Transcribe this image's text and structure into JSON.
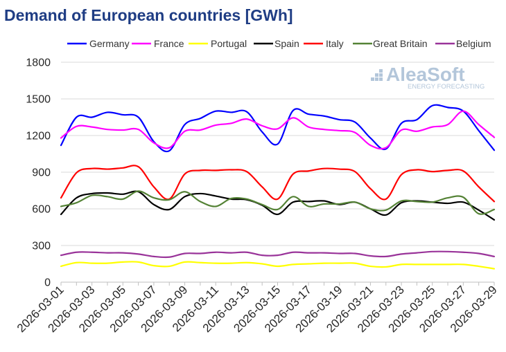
{
  "chart_data": {
    "type": "line",
    "title": "Demand of European countries [GWh]",
    "xlabel": "",
    "ylabel": "",
    "ylim": [
      0,
      1800
    ],
    "yticks": [
      0,
      300,
      600,
      900,
      1200,
      1500,
      1800
    ],
    "grid": true,
    "legend": "top",
    "x": [
      "2026-03-01",
      "2026-03-02",
      "2026-03-03",
      "2026-03-04",
      "2026-03-05",
      "2026-03-06",
      "2026-03-07",
      "2026-03-08",
      "2026-03-09",
      "2026-03-10",
      "2026-03-11",
      "2026-03-12",
      "2026-03-13",
      "2026-03-14",
      "2026-03-15",
      "2026-03-16",
      "2026-03-17",
      "2026-03-18",
      "2026-03-19",
      "2026-03-20",
      "2026-03-21",
      "2026-03-22",
      "2026-03-23",
      "2026-03-24",
      "2026-03-25",
      "2026-03-26",
      "2026-03-27",
      "2026-03-28",
      "2026-03-29"
    ],
    "xticks": [
      "2026-03-01",
      "2026-03-03",
      "2026-03-05",
      "2026-03-07",
      "2026-03-09",
      "2026-03-11",
      "2026-03-13",
      "2026-03-15",
      "2026-03-17",
      "2026-03-19",
      "2026-03-21",
      "2026-03-23",
      "2026-03-25",
      "2026-03-27",
      "2026-03-29"
    ],
    "series": [
      {
        "name": "Germany",
        "color": "#0000ff",
        "values": [
          1120,
          1350,
          1350,
          1390,
          1370,
          1350,
          1150,
          1075,
          1290,
          1340,
          1400,
          1390,
          1395,
          1230,
          1130,
          1405,
          1375,
          1360,
          1330,
          1310,
          1180,
          1090,
          1300,
          1330,
          1445,
          1430,
          1400,
          1240,
          1080
        ]
      },
      {
        "name": "France",
        "color": "#ff00ff",
        "values": [
          1180,
          1275,
          1270,
          1250,
          1245,
          1250,
          1140,
          1100,
          1235,
          1245,
          1285,
          1300,
          1335,
          1280,
          1255,
          1345,
          1270,
          1250,
          1240,
          1225,
          1120,
          1100,
          1245,
          1235,
          1270,
          1290,
          1400,
          1290,
          1185
        ]
      },
      {
        "name": "Portugal",
        "color": "#ffff00",
        "values": [
          130,
          160,
          155,
          155,
          165,
          165,
          135,
          130,
          165,
          160,
          155,
          155,
          160,
          150,
          130,
          145,
          150,
          155,
          155,
          155,
          130,
          125,
          145,
          145,
          145,
          145,
          145,
          130,
          110
        ]
      },
      {
        "name": "Spain",
        "color": "#000000",
        "values": [
          555,
          690,
          725,
          730,
          720,
          740,
          635,
          595,
          700,
          725,
          705,
          680,
          675,
          630,
          555,
          655,
          660,
          665,
          635,
          655,
          600,
          550,
          650,
          665,
          655,
          645,
          655,
          590,
          510
        ]
      },
      {
        "name": "Italy",
        "color": "#ff0000",
        "values": [
          690,
          895,
          930,
          925,
          935,
          945,
          780,
          680,
          885,
          915,
          915,
          920,
          905,
          780,
          680,
          885,
          910,
          930,
          925,
          905,
          765,
          680,
          880,
          920,
          905,
          915,
          910,
          780,
          660
        ]
      },
      {
        "name": "Great Britain",
        "color": "#548235",
        "values": [
          620,
          650,
          710,
          700,
          680,
          745,
          690,
          675,
          740,
          660,
          620,
          685,
          680,
          635,
          595,
          700,
          620,
          640,
          640,
          655,
          600,
          590,
          665,
          660,
          655,
          690,
          695,
          560,
          595
        ]
      },
      {
        "name": "Belgium",
        "color": "#993399",
        "values": [
          220,
          245,
          245,
          240,
          240,
          230,
          210,
          205,
          235,
          235,
          245,
          240,
          245,
          220,
          220,
          245,
          240,
          240,
          235,
          235,
          215,
          210,
          230,
          240,
          250,
          250,
          245,
          235,
          210
        ]
      }
    ]
  },
  "watermark": {
    "brand": "AleaSoft",
    "tagline": "ENERGY FORECASTING"
  }
}
